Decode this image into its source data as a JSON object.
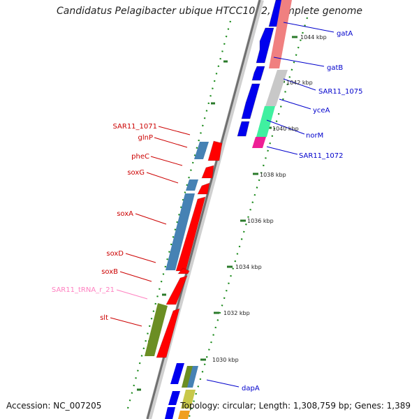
{
  "title": "Candidatus Pelagibacter ubique HTCC1062, complete genome",
  "footer": {
    "accession": "Accession: NC_007205",
    "topology": "Topology: circular; Length: 1,308,759 bp; Genes: 1,389"
  },
  "colors": {
    "forward_cds": "#ff0000",
    "reverse_cds": "#0000ee",
    "trna": "#ff80c0",
    "scale_dots": "#1a8a1a",
    "backbone": "#808080"
  },
  "scale_labels": [
    "1044 kbp",
    "1042 kbp",
    "1040 kbp",
    "1038 kbp",
    "1036 kbp",
    "1034 kbp",
    "1032 kbp",
    "1030 kbp"
  ],
  "genes_right": [
    "gatA",
    "gatB",
    "SAR11_1075",
    "yceA",
    "norM",
    "SAR11_1072",
    "dapA"
  ],
  "genes_left": [
    {
      "name": "SAR11_1071",
      "color": "#cc0000"
    },
    {
      "name": "glnP",
      "color": "#cc0000"
    },
    {
      "name": "pheC",
      "color": "#cc0000"
    },
    {
      "name": "soxG",
      "color": "#cc0000"
    },
    {
      "name": "soxA",
      "color": "#cc0000"
    },
    {
      "name": "soxD",
      "color": "#cc0000"
    },
    {
      "name": "soxB",
      "color": "#cc0000"
    },
    {
      "name": "SAR11_tRNA_r_21",
      "color": "#ff80c0"
    },
    {
      "name": "slt",
      "color": "#cc0000"
    }
  ]
}
